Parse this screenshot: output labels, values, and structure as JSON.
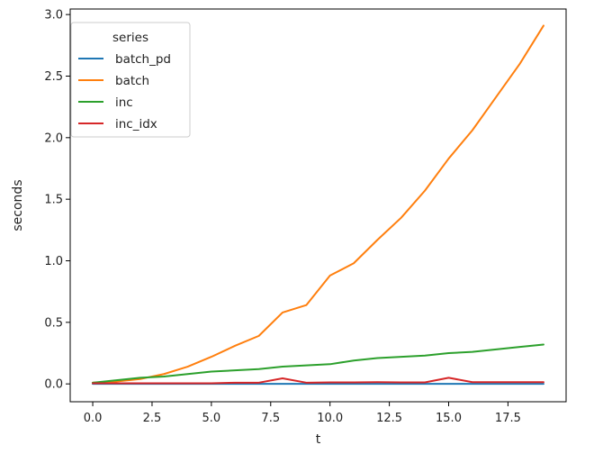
{
  "chart_data": {
    "type": "line",
    "xlabel": "t",
    "ylabel": "seconds",
    "xlim": [
      -0.95,
      19.95
    ],
    "ylim": [
      -0.145,
      3.045
    ],
    "xticks": [
      0.0,
      2.5,
      5.0,
      7.5,
      10.0,
      12.5,
      15.0,
      17.5
    ],
    "xtick_labels": [
      "0.0",
      "2.5",
      "5.0",
      "7.5",
      "10.0",
      "12.5",
      "15.0",
      "17.5"
    ],
    "yticks": [
      0.0,
      0.5,
      1.0,
      1.5,
      2.0,
      2.5,
      3.0
    ],
    "ytick_labels": [
      "0.0",
      "0.5",
      "1.0",
      "1.5",
      "2.0",
      "2.5",
      "3.0"
    ],
    "grid": false,
    "legend": {
      "title": "series",
      "placement": "upper-left"
    },
    "x": [
      0,
      1,
      2,
      3,
      4,
      5,
      6,
      7,
      8,
      9,
      10,
      11,
      12,
      13,
      14,
      15,
      16,
      17,
      18,
      19
    ],
    "series": [
      {
        "name": "batch_pd",
        "color": "#1f77b4",
        "values": [
          0.0,
          0.0,
          0.0,
          0.0,
          0.0,
          0.0,
          0.0,
          0.0,
          0.0,
          0.0,
          0.0,
          0.0,
          0.0,
          0.0,
          0.0,
          0.0,
          0.0,
          0.0,
          0.0,
          0.0
        ]
      },
      {
        "name": "batch",
        "color": "#ff7f0e",
        "values": [
          0.01,
          0.02,
          0.04,
          0.08,
          0.14,
          0.22,
          0.31,
          0.39,
          0.58,
          0.64,
          0.88,
          0.98,
          1.17,
          1.35,
          1.57,
          1.83,
          2.06,
          2.33,
          2.6,
          2.91
        ]
      },
      {
        "name": "inc",
        "color": "#2ca02c",
        "values": [
          0.01,
          0.03,
          0.05,
          0.06,
          0.08,
          0.1,
          0.11,
          0.12,
          0.14,
          0.15,
          0.16,
          0.19,
          0.21,
          0.22,
          0.23,
          0.25,
          0.26,
          0.28,
          0.3,
          0.32
        ]
      },
      {
        "name": "inc_idx",
        "color": "#d62728",
        "values": [
          0.005,
          0.005,
          0.005,
          0.005,
          0.005,
          0.005,
          0.01,
          0.01,
          0.045,
          0.01,
          0.012,
          0.012,
          0.014,
          0.012,
          0.012,
          0.05,
          0.014,
          0.014,
          0.014,
          0.014
        ]
      }
    ]
  }
}
